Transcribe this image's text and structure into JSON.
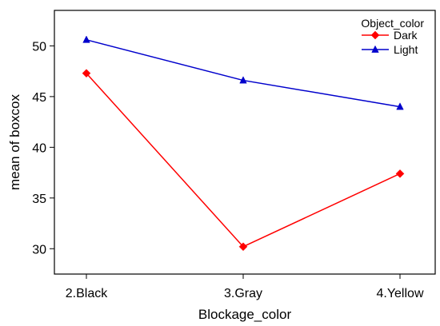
{
  "chart_data": {
    "type": "line",
    "title": "",
    "xlabel": "Blockage_color",
    "ylabel": "mean of boxcox",
    "categories": [
      "2.Black",
      "3.Gray",
      "4.Yellow"
    ],
    "ylim": [
      27.5,
      53.5
    ],
    "yticks": [
      30,
      35,
      40,
      45,
      50
    ],
    "grid": false,
    "legend": {
      "title": "Object_color",
      "placement": "top-right"
    },
    "series": [
      {
        "name": "Dark",
        "color": "#ff0000",
        "marker": "diamond",
        "values": [
          47.3,
          30.2,
          37.4
        ]
      },
      {
        "name": "Light",
        "color": "#0000cc",
        "marker": "triangle",
        "values": [
          50.6,
          46.6,
          44.0
        ]
      }
    ]
  }
}
